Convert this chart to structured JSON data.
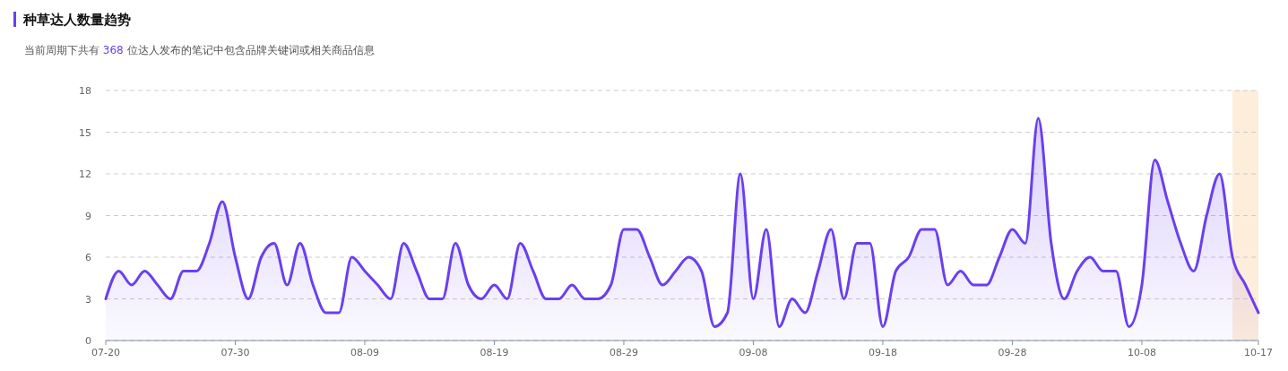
{
  "chart_data": {
    "type": "area",
    "title": "种草达人数量趋势",
    "subtitle": "当前周期下共有 368 位达人发布的笔记中包含品牌关键词或相关商品信息",
    "x": [
      "--07-20",
      "--07-21",
      "--07-22",
      "--07-23",
      "--07-24",
      "--07-25",
      "--07-26",
      "--07-27",
      "--07-28",
      "--07-29",
      "--07-30",
      "--07-31",
      "--08-01",
      "--08-02",
      "--08-03",
      "--08-04",
      "--08-05",
      "--08-06",
      "--08-07",
      "--08-08",
      "--08-09",
      "--08-10",
      "--08-11",
      "--08-12",
      "--08-13",
      "--08-14",
      "--08-15",
      "--08-16",
      "--08-17",
      "--08-18",
      "--08-19",
      "--08-20",
      "--08-21",
      "--08-22",
      "--08-23",
      "--08-24",
      "--08-25",
      "--08-26",
      "--08-27",
      "--08-28",
      "--08-29",
      "--08-30",
      "--08-31",
      "--09-01",
      "--09-02",
      "--09-03",
      "--09-04",
      "--09-05",
      "--09-06",
      "--09-07",
      "--09-08",
      "--09-09",
      "--09-10",
      "--09-11",
      "--09-12",
      "--09-13",
      "--09-14",
      "--09-15",
      "--09-16",
      "--09-17",
      "--09-18",
      "--09-19",
      "--09-20",
      "--09-21",
      "--09-22",
      "--09-23",
      "--09-24",
      "--09-25",
      "--09-26",
      "--09-27",
      "--09-28",
      "--09-29",
      "--09-30",
      "--10-01",
      "--10-02",
      "--10-03",
      "--10-04",
      "--10-05",
      "--10-06",
      "--10-07",
      "--10-08",
      "--10-09",
      "--10-10",
      "--10-11",
      "--10-12",
      "--10-13",
      "--10-14",
      "--10-15",
      "--10-16",
      "--10-17"
    ],
    "series": [
      {
        "color": "#6a3ff0",
        "values": [
          3,
          5,
          4,
          5,
          4,
          3,
          5,
          5,
          7,
          10,
          6,
          3,
          6,
          7,
          4,
          7,
          4,
          2,
          2,
          6,
          5,
          4,
          3,
          7,
          5,
          3,
          3,
          7,
          4,
          3,
          4,
          3,
          7,
          5,
          3,
          3,
          4,
          3,
          3,
          4,
          8,
          8,
          6,
          4,
          5,
          6,
          5,
          1,
          2,
          12,
          3,
          8,
          1,
          3,
          2,
          5,
          8,
          3,
          7,
          7,
          1,
          5,
          6,
          8,
          8,
          4,
          5,
          4,
          4,
          6,
          8,
          7,
          16,
          7,
          3,
          5,
          6,
          5,
          5,
          1,
          4,
          13,
          10,
          7,
          5,
          9,
          12,
          6,
          4,
          2
        ]
      }
    ],
    "xlim": [
      "--07-20",
      "--10-17"
    ],
    "xticks": [
      {
        "value": "--07-20",
        "label": "07-20"
      },
      {
        "value": "--07-30",
        "label": "07-30"
      },
      {
        "value": "--08-09",
        "label": "08-09"
      },
      {
        "value": "--08-19",
        "label": "08-19"
      },
      {
        "value": "--08-29",
        "label": "08-29"
      },
      {
        "value": "--09-08",
        "label": "09-08"
      },
      {
        "value": "--09-18",
        "label": "09-18"
      },
      {
        "value": "--09-28",
        "label": "09-28"
      },
      {
        "value": "--10-08",
        "label": "10-08"
      },
      {
        "value": "--10-17",
        "label": "10-17"
      }
    ],
    "ylim": [
      0,
      18
    ],
    "yticks": [
      0,
      3,
      6,
      9,
      12,
      15,
      18
    ],
    "grid": "y",
    "bands": [
      {
        "axis": "x",
        "from": "--10-15",
        "to": "--10-17",
        "color": "#fdebd7"
      }
    ]
  }
}
